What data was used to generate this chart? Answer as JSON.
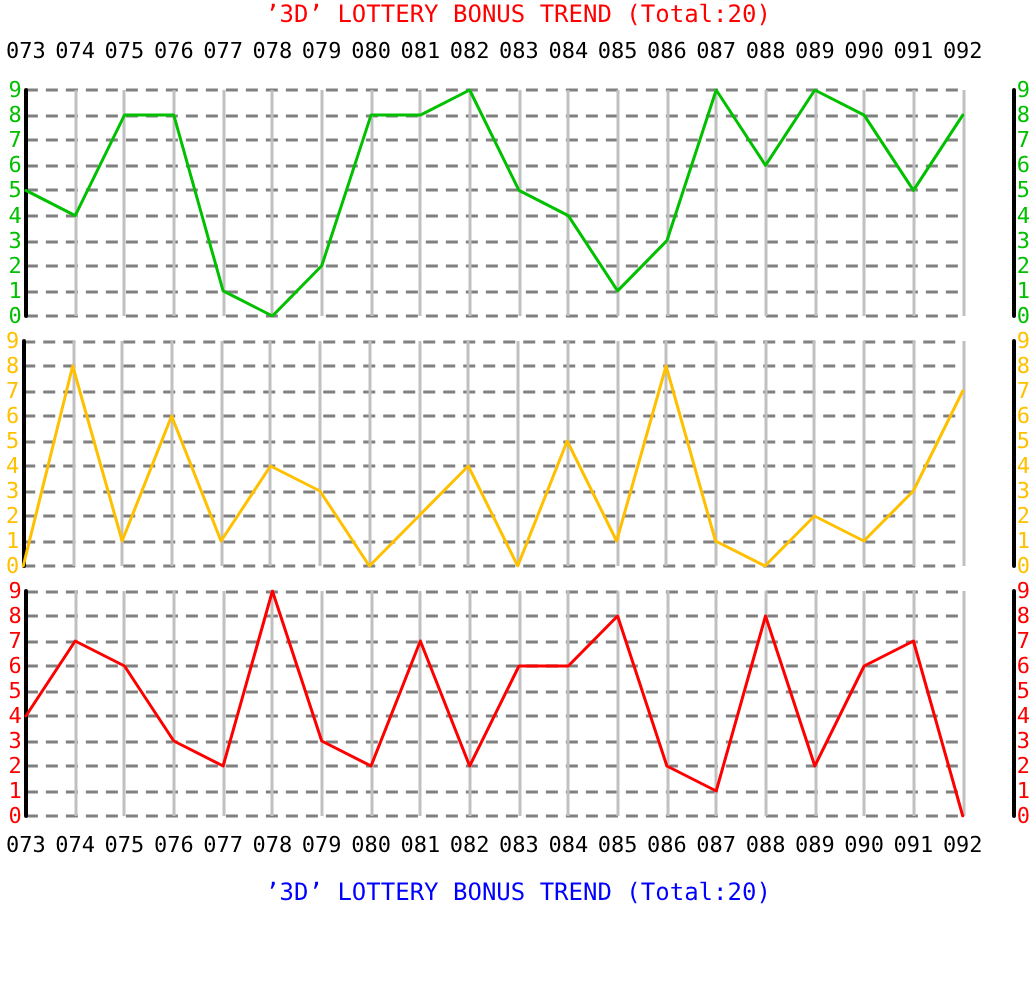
{
  "chart_data": [
    {
      "type": "line",
      "title": "’3D’ LOTTERY BONUS TREND (Total:20)",
      "categories": [
        "073",
        "074",
        "075",
        "076",
        "077",
        "078",
        "079",
        "080",
        "081",
        "082",
        "083",
        "084",
        "085",
        "086",
        "087",
        "088",
        "089",
        "090",
        "091",
        "092"
      ],
      "series": [
        {
          "color": "#00c000",
          "values": [
            5,
            4,
            8,
            8,
            1,
            0,
            2,
            8,
            8,
            9,
            5,
            4,
            1,
            3,
            9,
            6,
            9,
            8,
            5,
            8
          ]
        }
      ],
      "ylim": [
        0,
        9
      ],
      "yticks": [
        0,
        1,
        2,
        3,
        4,
        5,
        6,
        7,
        8,
        9
      ],
      "y2lim": [
        0,
        9
      ],
      "y2ticks": [
        0,
        1,
        2,
        3,
        4,
        5,
        6,
        7,
        8,
        9
      ],
      "grid": true,
      "marker": "none",
      "line_style": "solid"
    },
    {
      "type": "line",
      "categories": [
        "073",
        "074",
        "075",
        "076",
        "077",
        "078",
        "079",
        "080",
        "081",
        "082",
        "083",
        "084",
        "085",
        "086",
        "087",
        "088",
        "089",
        "090",
        "091",
        "092"
      ],
      "series": [
        {
          "color": "#ffc000",
          "values": [
            0,
            8,
            1,
            6,
            1,
            4,
            3,
            0,
            2,
            4,
            0,
            5,
            1,
            8,
            1,
            0,
            2,
            1,
            3,
            7
          ]
        }
      ],
      "ylim": [
        0,
        9
      ],
      "yticks": [
        0,
        1,
        2,
        3,
        4,
        5,
        6,
        7,
        8,
        9
      ],
      "y2lim": [
        0,
        9
      ],
      "y2ticks": [
        0,
        1,
        2,
        3,
        4,
        5,
        6,
        7,
        8,
        9
      ],
      "grid": true,
      "marker": "none",
      "line_style": "solid",
      "tick_labels": "y"
    },
    {
      "type": "line",
      "categories": [
        "073",
        "074",
        "075",
        "076",
        "077",
        "078",
        "079",
        "080",
        "081",
        "082",
        "083",
        "084",
        "085",
        "086",
        "087",
        "088",
        "089",
        "090",
        "091",
        "092"
      ],
      "series": [
        {
          "color": "#ff0000",
          "values": [
            4,
            7,
            6,
            3,
            2,
            9,
            3,
            2,
            7,
            2,
            6,
            6,
            8,
            2,
            1,
            8,
            2,
            6,
            7,
            0
          ]
        }
      ],
      "ylim": [
        0,
        9
      ],
      "yticks": [
        0,
        1,
        2,
        3,
        4,
        5,
        6,
        7,
        8,
        9
      ],
      "y2lim": [
        0,
        9
      ],
      "y2ticks": [
        0,
        1,
        2,
        3,
        4,
        5,
        6,
        7,
        8,
        9
      ],
      "grid": true,
      "marker": "none",
      "line_style": "solid",
      "annotations": [
        "’3D’ LOTTERY BONUS TREND (Total:20)"
      ]
    }
  ]
}
